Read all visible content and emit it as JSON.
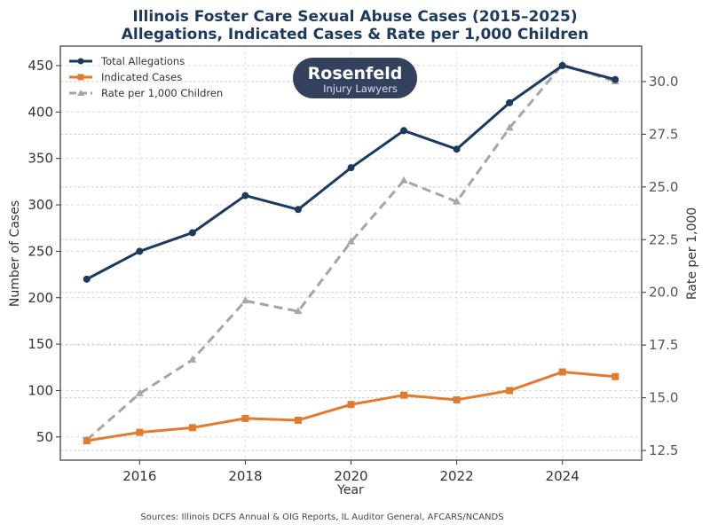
{
  "chart_data": {
    "type": "line",
    "title": "Illinois Foster Care Sexual Abuse Cases (2015–2025)",
    "subtitle": "Allegations, Indicated Cases & Rate per 1,000 Children",
    "xlabel": "Year",
    "ylabel": "Number of Cases",
    "y2label": "Rate per 1,000",
    "x": [
      2015,
      2016,
      2017,
      2018,
      2019,
      2020,
      2021,
      2022,
      2023,
      2024,
      2025
    ],
    "xlim": [
      2014.5,
      2025.5
    ],
    "ylim": [
      25,
      471
    ],
    "y2lim": [
      12.04,
      31.68
    ],
    "xticks": [
      "2016",
      "2018",
      "2020",
      "2022",
      "2024"
    ],
    "yticks": [
      "50",
      "100",
      "150",
      "200",
      "250",
      "300",
      "350",
      "400",
      "450"
    ],
    "y2ticks": [
      "12.5",
      "15.0",
      "17.5",
      "20.0",
      "22.5",
      "25.0",
      "27.5",
      "30.0"
    ],
    "grid": true,
    "legend_position": "top-left",
    "series": [
      {
        "name": "Total Allegations",
        "axis": "left",
        "color": "#1c3a5e",
        "marker": "circle",
        "style": "solid",
        "values": [
          220,
          250,
          270,
          310,
          295,
          340,
          380,
          360,
          410,
          450,
          435
        ]
      },
      {
        "name": "Indicated Cases",
        "axis": "left",
        "color": "#e07b2f",
        "marker": "square",
        "style": "solid",
        "values": [
          46,
          55,
          60,
          70,
          68,
          85,
          95,
          90,
          100,
          120,
          115
        ]
      },
      {
        "name": "Rate per 1,000 Children",
        "axis": "right",
        "color": "#a6a6a6",
        "marker": "triangle",
        "style": "dashed",
        "values": [
          13.0,
          15.2,
          16.8,
          19.6,
          19.1,
          22.4,
          25.3,
          24.3,
          27.8,
          30.8,
          30.0
        ]
      }
    ]
  },
  "logo": {
    "line1": "Rosenfeld",
    "line2": "Injury Lawyers",
    "bg": "#33415c"
  },
  "source": "Sources: Illinois DCFS Annual & OIG Reports, IL Auditor General, AFCARS/NCANDS"
}
